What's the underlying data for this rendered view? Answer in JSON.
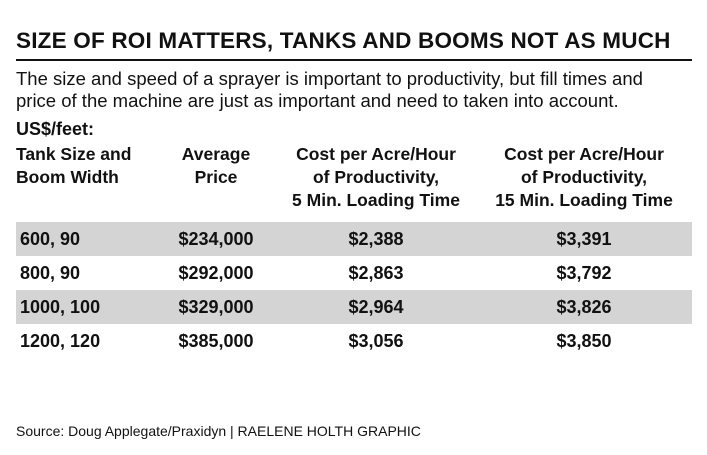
{
  "title": "SIZE OF ROI MATTERS, TANKS AND BOOMS NOT AS MUCH",
  "subtitle": "The size and speed of a sprayer is important to productivity, but fill times and price of the machine are just as important and need to taken into account.",
  "units": "US$/feet:",
  "source": "Source: Doug Applegate/Praxidyn  |  RAELENE HOLTH GRAPHIC",
  "chart_data": {
    "type": "table",
    "columns": [
      [
        "Tank Size and",
        "Boom Width"
      ],
      [
        "Average",
        "Price"
      ],
      [
        "Cost per Acre/Hour",
        "of Productivity,",
        "5 Min. Loading Time"
      ],
      [
        "Cost per Acre/Hour",
        "of Productivity,",
        "15 Min. Loading Time"
      ]
    ],
    "rows": [
      [
        "600, 90",
        "$234,000",
        "$2,388",
        "$3,391"
      ],
      [
        "800, 90",
        "$292,000",
        "$2,863",
        "$3,792"
      ],
      [
        "1000, 100",
        "$329,000",
        "$2,964",
        "$3,826"
      ],
      [
        "1200, 120",
        "$385,000",
        "$3,056",
        "$3,850"
      ]
    ],
    "row_shading": [
      "#d4d4d4",
      "#ffffff",
      "#d4d4d4",
      "#ffffff"
    ]
  }
}
